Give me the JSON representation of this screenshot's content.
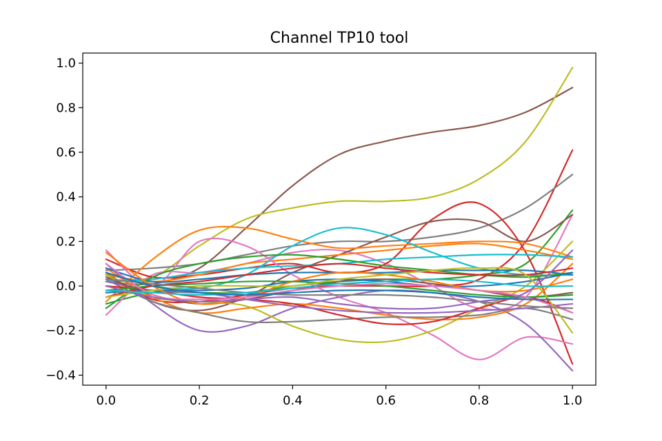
{
  "chart_data": {
    "type": "line",
    "title": "Channel TP10 tool",
    "xlabel": "",
    "ylabel": "",
    "xlim": [
      -0.05,
      1.05
    ],
    "ylim": [
      -0.445,
      1.045
    ],
    "xticks": [
      0.0,
      0.2,
      0.4,
      0.6,
      0.8,
      1.0
    ],
    "xtick_labels": [
      "0.0",
      "0.2",
      "0.4",
      "0.6",
      "0.8",
      "1.0"
    ],
    "yticks": [
      -0.4,
      -0.2,
      0.0,
      0.2,
      0.4,
      0.6,
      0.8,
      1.0
    ],
    "ytick_labels": [
      "−0.4",
      "−0.2",
      "0.0",
      "0.2",
      "0.4",
      "0.6",
      "0.8",
      "1.0"
    ],
    "grid": false,
    "legend": "none",
    "palette": [
      "#1f77b4",
      "#ff7f0e",
      "#2ca02c",
      "#d62728",
      "#9467bd",
      "#8c564b",
      "#e377c2",
      "#7f7f7f",
      "#bcbd22",
      "#17becf"
    ],
    "x": [
      0.0,
      0.1,
      0.2,
      0.3,
      0.4,
      0.5,
      0.6,
      0.7,
      0.8,
      0.9,
      1.0
    ],
    "series": [
      {
        "color": "#8c564b",
        "values": [
          0.02,
          0.01,
          0.08,
          0.26,
          0.45,
          0.59,
          0.65,
          0.69,
          0.72,
          0.78,
          0.89
        ]
      },
      {
        "color": "#bcbd22",
        "values": [
          0.03,
          0.04,
          0.18,
          0.3,
          0.35,
          0.38,
          0.38,
          0.4,
          0.48,
          0.65,
          0.98
        ]
      },
      {
        "color": "#d62728",
        "values": [
          0.05,
          -0.06,
          -0.07,
          -0.04,
          -0.01,
          0.0,
          0.0,
          0.0,
          0.03,
          0.2,
          0.61
        ]
      },
      {
        "color": "#7f7f7f",
        "values": [
          0.07,
          0.08,
          0.1,
          0.14,
          0.18,
          0.2,
          0.2,
          0.22,
          0.26,
          0.35,
          0.5
        ]
      },
      {
        "color": "#2ca02c",
        "values": [
          -0.08,
          -0.03,
          -0.03,
          -0.03,
          0.0,
          0.02,
          0.03,
          0.03,
          0.05,
          0.1,
          0.34
        ]
      },
      {
        "color": "#e377c2",
        "values": [
          -0.13,
          0.05,
          0.06,
          0.1,
          0.15,
          0.16,
          0.1,
          0.0,
          -0.1,
          -0.05,
          0.32
        ]
      },
      {
        "color": "#d62728",
        "values": [
          0.12,
          0.04,
          0.05,
          0.08,
          0.1,
          0.06,
          0.1,
          0.3,
          0.37,
          0.15,
          -0.35
        ]
      },
      {
        "color": "#8c564b",
        "values": [
          0.06,
          -0.07,
          -0.11,
          -0.05,
          0.06,
          0.14,
          0.22,
          0.29,
          0.29,
          0.2,
          0.32
        ]
      },
      {
        "color": "#ff7f0e",
        "values": [
          -0.07,
          0.12,
          0.25,
          0.26,
          0.21,
          0.17,
          0.18,
          0.19,
          0.2,
          0.19,
          0.13
        ]
      },
      {
        "color": "#ff7f0e",
        "values": [
          0.05,
          0.02,
          0.05,
          0.1,
          0.12,
          0.14,
          0.16,
          0.18,
          0.19,
          0.16,
          0.12
        ]
      },
      {
        "color": "#17becf",
        "values": [
          0.06,
          0.0,
          -0.01,
          0.05,
          0.18,
          0.26,
          0.23,
          0.15,
          0.08,
          0.05,
          0.05
        ]
      },
      {
        "color": "#e377c2",
        "values": [
          0.16,
          0.0,
          0.2,
          0.18,
          0.05,
          -0.05,
          -0.12,
          -0.22,
          -0.33,
          -0.23,
          -0.26
        ]
      },
      {
        "color": "#9467bd",
        "values": [
          0.1,
          -0.08,
          -0.2,
          -0.18,
          -0.1,
          -0.05,
          -0.02,
          -0.03,
          -0.07,
          -0.17,
          -0.38
        ]
      },
      {
        "color": "#bcbd22",
        "values": [
          0.05,
          -0.05,
          -0.07,
          -0.09,
          -0.18,
          -0.24,
          -0.25,
          -0.2,
          -0.1,
          0.0,
          0.2
        ]
      },
      {
        "color": "#ff7f0e",
        "values": [
          0.08,
          -0.05,
          -0.12,
          -0.1,
          -0.08,
          -0.1,
          -0.13,
          -0.15,
          -0.14,
          -0.08,
          0.1
        ]
      },
      {
        "color": "#7f7f7f",
        "values": [
          0.03,
          -0.07,
          -0.12,
          -0.16,
          -0.16,
          -0.15,
          -0.14,
          -0.14,
          -0.13,
          -0.1,
          -0.15
        ]
      },
      {
        "color": "#d62728",
        "values": [
          0.0,
          -0.02,
          -0.05,
          -0.06,
          -0.08,
          -0.13,
          -0.17,
          -0.16,
          -0.1,
          -0.05,
          -0.12
        ]
      },
      {
        "color": "#1f77b4",
        "values": [
          0.08,
          0.02,
          0.03,
          0.05,
          0.06,
          0.06,
          0.06,
          0.07,
          0.07,
          0.07,
          0.05
        ]
      },
      {
        "color": "#17becf",
        "values": [
          0.02,
          0.03,
          0.06,
          0.08,
          0.09,
          0.1,
          0.12,
          0.13,
          0.14,
          0.14,
          0.13
        ]
      },
      {
        "color": "#2ca02c",
        "values": [
          -0.1,
          0.04,
          0.1,
          0.13,
          0.14,
          0.12,
          0.09,
          0.07,
          0.05,
          0.04,
          0.06
        ]
      },
      {
        "color": "#9467bd",
        "values": [
          0.02,
          -0.02,
          -0.03,
          -0.06,
          -0.09,
          -0.11,
          -0.12,
          -0.12,
          -0.11,
          -0.1,
          -0.08
        ]
      },
      {
        "color": "#8c564b",
        "values": [
          0.04,
          -0.04,
          -0.08,
          -0.06,
          -0.02,
          0.02,
          0.03,
          0.01,
          -0.02,
          -0.05,
          -0.03
        ]
      },
      {
        "color": "#1f77b4",
        "values": [
          -0.03,
          -0.02,
          -0.02,
          -0.01,
          0.02,
          0.03,
          0.02,
          0.0,
          0.0,
          0.02,
          0.06
        ]
      },
      {
        "color": "#ff7f0e",
        "values": [
          0.15,
          0.0,
          -0.08,
          -0.05,
          0.02,
          0.06,
          0.05,
          0.02,
          -0.02,
          -0.02,
          0.03
        ]
      },
      {
        "color": "#2ca02c",
        "values": [
          -0.02,
          0.0,
          0.01,
          0.02,
          0.02,
          0.01,
          0.0,
          -0.02,
          -0.04,
          -0.05,
          -0.04
        ]
      },
      {
        "color": "#d62728",
        "values": [
          -0.05,
          0.0,
          0.02,
          0.05,
          0.08,
          0.1,
          0.08,
          0.06,
          0.05,
          0.05,
          0.08
        ]
      },
      {
        "color": "#e377c2",
        "values": [
          0.1,
          -0.04,
          -0.06,
          -0.05,
          -0.02,
          0.0,
          0.01,
          0.0,
          -0.02,
          -0.05,
          -0.12
        ]
      },
      {
        "color": "#bcbd22",
        "values": [
          -0.05,
          -0.02,
          0.0,
          0.0,
          0.0,
          0.03,
          0.05,
          0.07,
          0.08,
          0.05,
          -0.21
        ]
      },
      {
        "color": "#9467bd",
        "values": [
          0.0,
          -0.05,
          -0.07,
          -0.06,
          -0.05,
          -0.08,
          -0.1,
          -0.1,
          -0.07,
          -0.03,
          0.16
        ]
      },
      {
        "color": "#7f7f7f",
        "values": [
          0.03,
          0.01,
          -0.01,
          -0.03,
          -0.04,
          -0.04,
          -0.04,
          -0.05,
          -0.07,
          -0.09,
          -0.1
        ]
      },
      {
        "color": "#17becf",
        "values": [
          -0.02,
          -0.03,
          -0.04,
          -0.03,
          -0.01,
          0.01,
          0.02,
          0.03,
          0.02,
          0.0,
          0.0
        ]
      },
      {
        "color": "#1f77b4",
        "values": [
          0.06,
          0.0,
          -0.03,
          -0.04,
          -0.03,
          -0.02,
          -0.02,
          -0.03,
          -0.05,
          -0.06,
          -0.06
        ]
      }
    ]
  }
}
